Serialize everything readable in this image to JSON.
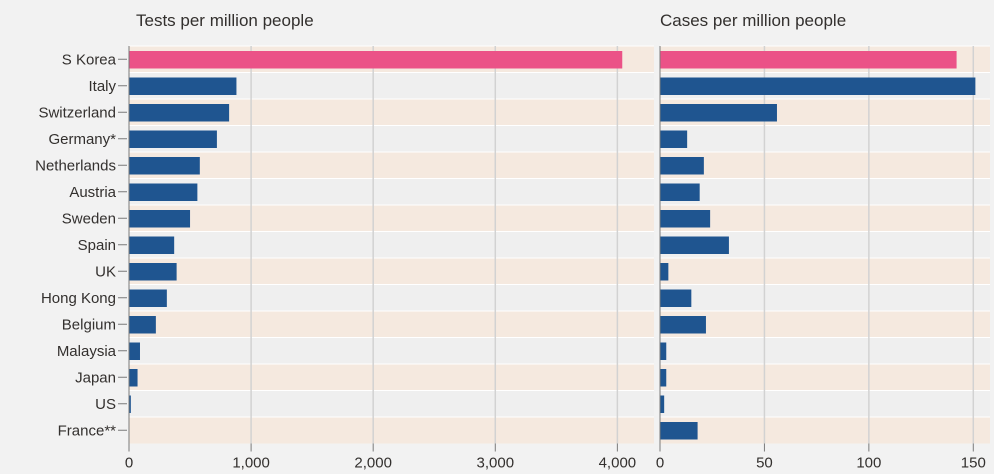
{
  "chart_data": [
    {
      "type": "bar",
      "orientation": "horizontal",
      "title": "Tests per million people",
      "categories": [
        "S Korea",
        "Italy",
        "Switzerland",
        "Germany*",
        "Netherlands",
        "Austria",
        "Sweden",
        "Spain",
        "UK",
        "Hong Kong",
        "Belgium",
        "Malaysia",
        "Japan",
        "US",
        "France**"
      ],
      "values": [
        4040,
        880,
        820,
        720,
        580,
        560,
        500,
        370,
        390,
        310,
        220,
        90,
        70,
        15,
        0
      ],
      "xlim": [
        0,
        4300
      ],
      "xticks": [
        0,
        1000,
        2000,
        3000,
        4000
      ],
      "xtick_labels": [
        "0",
        "1,000",
        "2,000",
        "3,000",
        "4,000"
      ],
      "grid": true,
      "highlight": "S Korea"
    },
    {
      "type": "bar",
      "orientation": "horizontal",
      "title": "Cases per million people",
      "categories": [
        "S Korea",
        "Italy",
        "Switzerland",
        "Germany*",
        "Netherlands",
        "Austria",
        "Sweden",
        "Spain",
        "UK",
        "Hong Kong",
        "Belgium",
        "Malaysia",
        "Japan",
        "US",
        "France**"
      ],
      "values": [
        142,
        151,
        56,
        13,
        21,
        19,
        24,
        33,
        4,
        15,
        22,
        3,
        3,
        2,
        18
      ],
      "xlim": [
        0,
        158
      ],
      "xticks": [
        0,
        50,
        100,
        150
      ],
      "xtick_labels": [
        "0",
        "50",
        "100",
        "150"
      ],
      "grid": true,
      "highlight": "S Korea"
    }
  ],
  "colors": {
    "bar": "#1f5590",
    "highlight": "#eb5287",
    "band_odd": "#f5e9df",
    "band_even": "#efefef",
    "grid": "#d2d2d2",
    "axis": "#7a7a7a",
    "background": "#f2f2f2"
  }
}
